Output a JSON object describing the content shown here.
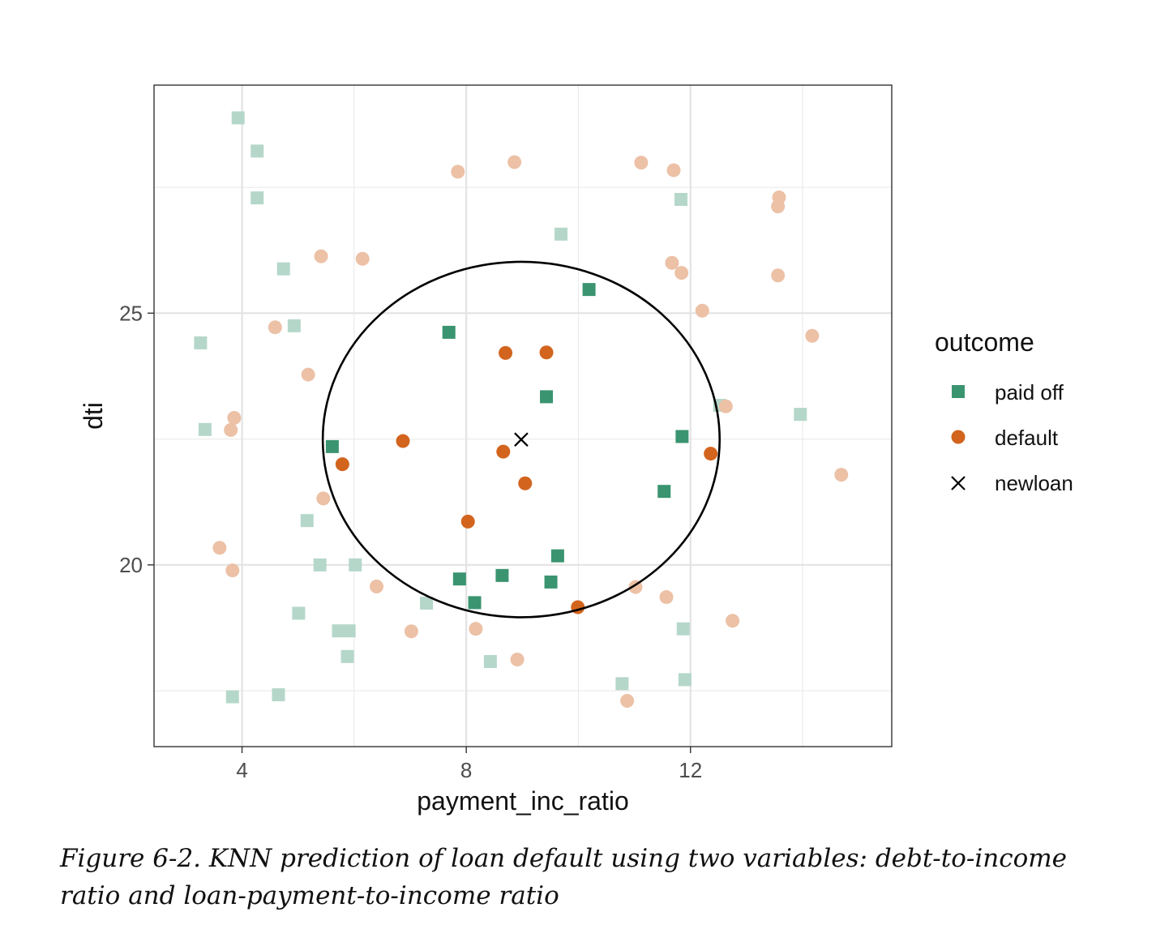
{
  "chart_data": {
    "type": "scatter",
    "title": "",
    "xlabel": "payment_inc_ratio",
    "ylabel": "dti",
    "xlim": [
      2.43,
      15.59
    ],
    "ylim": [
      16.39,
      29.53
    ],
    "x_ticks": [
      4,
      8,
      12
    ],
    "x_tick_labels": [
      "4",
      "8",
      "12"
    ],
    "y_ticks": [
      20,
      25
    ],
    "y_tick_labels": [
      "20",
      "25"
    ],
    "grid": true,
    "legend": {
      "title": "outcome",
      "position": "right",
      "entries": [
        {
          "label": "paid off",
          "shape": "square",
          "color": "#3a9470"
        },
        {
          "label": "default",
          "shape": "circle",
          "color": "#d2641e"
        },
        {
          "label": "newloan",
          "shape": "cross",
          "color": "#000000"
        }
      ]
    },
    "colors": {
      "paid_off": "#3a9470",
      "paid_off_faded": "#b5d7ca",
      "default": "#d2641e",
      "default_faded": "#ecc1a6",
      "newloan": "#000000"
    },
    "neighborhood_circle": {
      "center": [
        8.98,
        22.49
      ],
      "radius_x": 3.54,
      "radius_y": 3.53
    },
    "series": [
      {
        "name": "paid off",
        "role": "neighbor",
        "points": [
          [
            5.61,
            22.35
          ],
          [
            7.69,
            24.62
          ],
          [
            10.19,
            25.47
          ],
          [
            9.43,
            23.34
          ],
          [
            11.85,
            22.55
          ],
          [
            11.53,
            21.46
          ],
          [
            9.63,
            20.18
          ],
          [
            8.64,
            19.79
          ],
          [
            7.88,
            19.72
          ],
          [
            9.51,
            19.66
          ],
          [
            8.15,
            19.25
          ]
        ]
      },
      {
        "name": "paid off",
        "role": "other",
        "points": [
          [
            3.93,
            28.88
          ],
          [
            4.27,
            28.22
          ],
          [
            4.27,
            27.29
          ],
          [
            4.74,
            25.88
          ],
          [
            9.69,
            26.57
          ],
          [
            11.83,
            27.26
          ],
          [
            4.93,
            24.75
          ],
          [
            3.26,
            24.41
          ],
          [
            3.34,
            22.69
          ],
          [
            12.52,
            23.17
          ],
          [
            13.96,
            22.99
          ],
          [
            5.16,
            20.88
          ],
          [
            5.39,
            20.0
          ],
          [
            6.02,
            20.0
          ],
          [
            7.29,
            19.24
          ],
          [
            5.01,
            19.04
          ],
          [
            5.72,
            18.69
          ],
          [
            5.91,
            18.69
          ],
          [
            11.87,
            18.73
          ],
          [
            5.88,
            18.18
          ],
          [
            8.43,
            18.08
          ],
          [
            10.78,
            17.64
          ],
          [
            11.9,
            17.72
          ],
          [
            4.65,
            17.42
          ],
          [
            3.83,
            17.38
          ]
        ]
      },
      {
        "name": "default",
        "role": "neighbor",
        "points": [
          [
            8.7,
            24.21
          ],
          [
            9.43,
            24.22
          ],
          [
            6.87,
            22.46
          ],
          [
            5.79,
            22.0
          ],
          [
            8.66,
            22.25
          ],
          [
            12.36,
            22.21
          ],
          [
            9.05,
            21.62
          ],
          [
            8.03,
            20.86
          ],
          [
            9.99,
            19.16
          ]
        ]
      },
      {
        "name": "default",
        "role": "other",
        "points": [
          [
            7.85,
            27.81
          ],
          [
            8.86,
            28.0
          ],
          [
            11.12,
            27.99
          ],
          [
            11.7,
            27.84
          ],
          [
            13.58,
            27.3
          ],
          [
            13.56,
            27.12
          ],
          [
            5.41,
            26.13
          ],
          [
            6.15,
            26.08
          ],
          [
            11.67,
            26.0
          ],
          [
            11.84,
            25.8
          ],
          [
            13.56,
            25.75
          ],
          [
            12.21,
            25.05
          ],
          [
            4.59,
            24.72
          ],
          [
            14.17,
            24.55
          ],
          [
            5.18,
            23.78
          ],
          [
            3.86,
            22.92
          ],
          [
            3.8,
            22.68
          ],
          [
            12.63,
            23.15
          ],
          [
            14.69,
            21.79
          ],
          [
            5.45,
            21.32
          ],
          [
            3.6,
            20.34
          ],
          [
            3.83,
            19.89
          ],
          [
            6.4,
            19.57
          ],
          [
            11.02,
            19.56
          ],
          [
            11.57,
            19.36
          ],
          [
            7.02,
            18.68
          ],
          [
            8.17,
            18.73
          ],
          [
            12.75,
            18.89
          ],
          [
            8.91,
            18.12
          ],
          [
            10.87,
            17.3
          ]
        ]
      },
      {
        "name": "newloan",
        "role": "target",
        "points": [
          [
            8.98,
            22.49
          ]
        ]
      }
    ]
  },
  "caption": "Figure 6-2. KNN prediction of loan default using two variables: debt-to-income ratio and loan-payment-to-income ratio"
}
